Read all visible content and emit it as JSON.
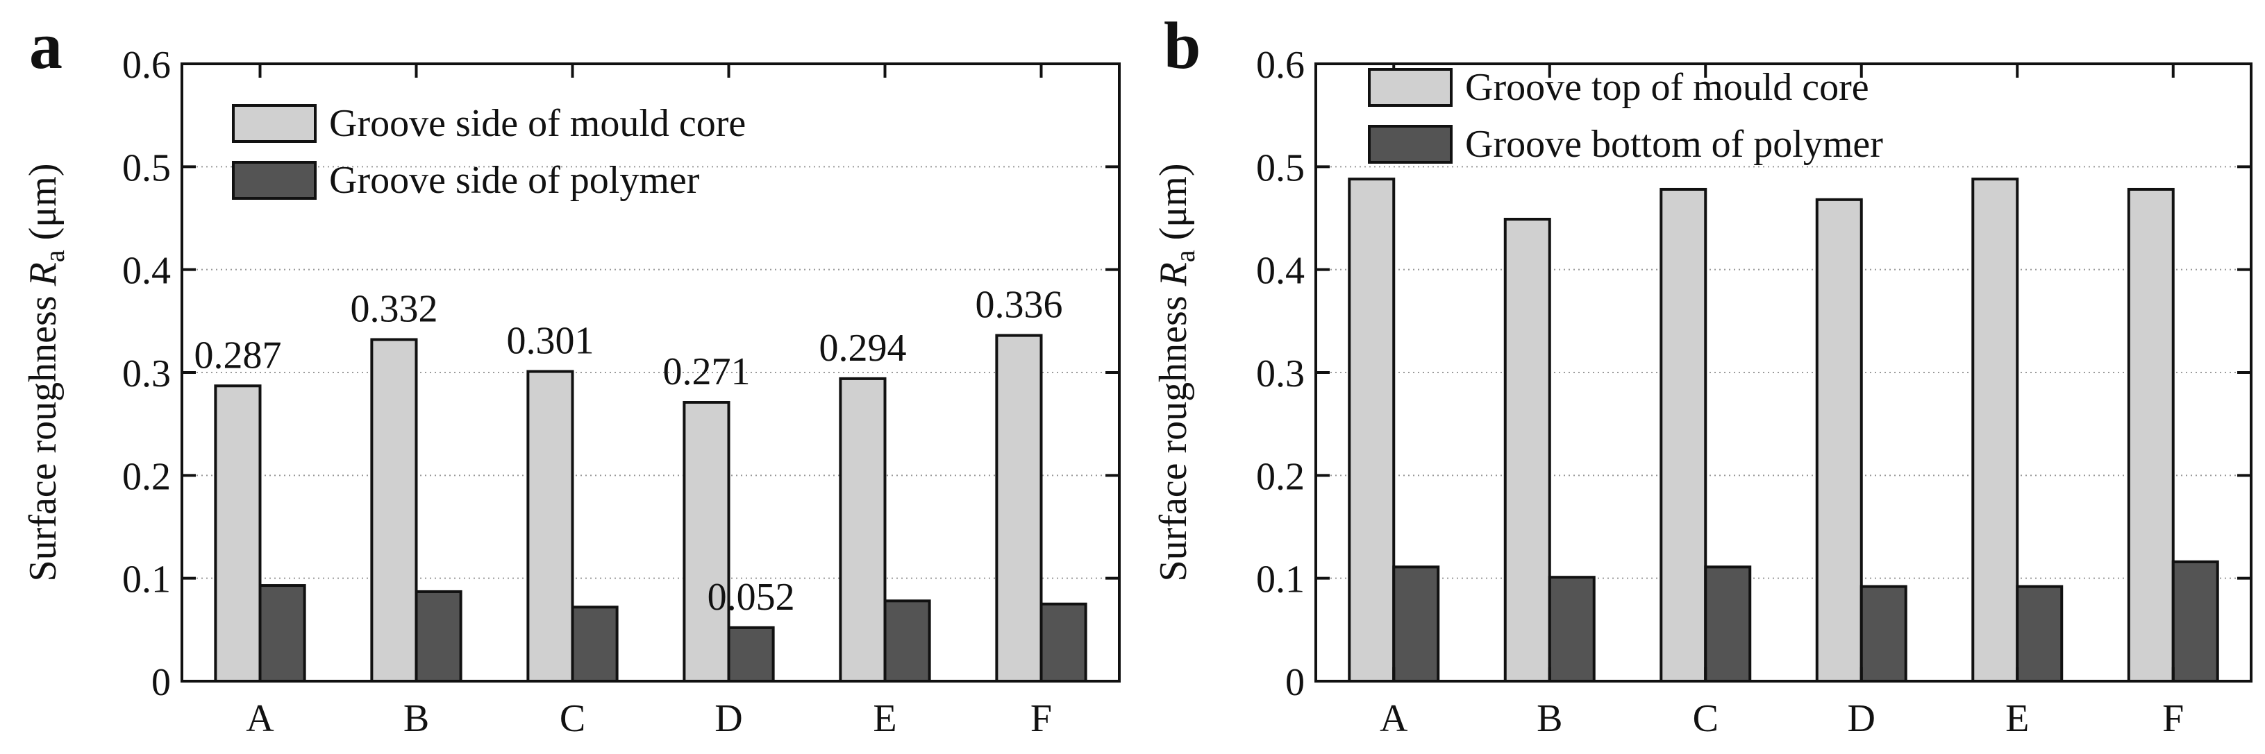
{
  "chart_data": [
    {
      "type": "bar",
      "panel_label": "a",
      "categories": [
        "A",
        "B",
        "C",
        "D",
        "E",
        "F"
      ],
      "series": [
        {
          "name": "Groove side of mould core",
          "values": [
            0.287,
            0.332,
            0.301,
            0.271,
            0.294,
            0.336
          ],
          "color": "#d0d0d0"
        },
        {
          "name": "Groove side of polymer",
          "values": [
            0.093,
            0.087,
            0.072,
            0.052,
            0.078,
            0.075
          ],
          "color": "#545454"
        }
      ],
      "data_labels": [
        {
          "series": 0,
          "index": 0,
          "text": "0.287"
        },
        {
          "series": 0,
          "index": 1,
          "text": "0.332"
        },
        {
          "series": 0,
          "index": 2,
          "text": "0.301"
        },
        {
          "series": 0,
          "index": 3,
          "text": "0.271"
        },
        {
          "series": 0,
          "index": 4,
          "text": "0.294"
        },
        {
          "series": 0,
          "index": 5,
          "text": "0.336"
        },
        {
          "series": 1,
          "index": 3,
          "text": "0.052"
        }
      ],
      "ylabel_main": "Surface roughness ",
      "ylabel_symbol": "R",
      "ylabel_sub": "a",
      "ylabel_unit": " (μm)",
      "xlabel": "",
      "ylim": [
        0,
        0.6
      ],
      "yticks": [
        0,
        0.1,
        0.2,
        0.3,
        0.4,
        0.5,
        0.6
      ],
      "ytick_labels": [
        "0",
        "0.1",
        "0.2",
        "0.3",
        "0.4",
        "0.5",
        "0.6"
      ],
      "grid": "horizontal-dotted",
      "legend_position": "top-left"
    },
    {
      "type": "bar",
      "panel_label": "b",
      "categories": [
        "A",
        "B",
        "C",
        "D",
        "E",
        "F"
      ],
      "series": [
        {
          "name": "Groove top of mould core",
          "values": [
            0.488,
            0.449,
            0.478,
            0.468,
            0.488,
            0.478
          ],
          "color": "#d0d0d0"
        },
        {
          "name": "Groove bottom of polymer",
          "values": [
            0.111,
            0.101,
            0.111,
            0.092,
            0.092,
            0.116
          ],
          "color": "#545454"
        }
      ],
      "data_labels": [],
      "ylabel_main": "Surface roughness ",
      "ylabel_symbol": "R",
      "ylabel_sub": "a",
      "ylabel_unit": " (μm)",
      "xlabel": "",
      "ylim": [
        0,
        0.6
      ],
      "yticks": [
        0,
        0.1,
        0.2,
        0.3,
        0.4,
        0.5,
        0.6
      ],
      "ytick_labels": [
        "0",
        "0.1",
        "0.2",
        "0.3",
        "0.4",
        "0.5",
        "0.6"
      ],
      "grid": "horizontal-dotted",
      "legend_position": "top-left"
    }
  ]
}
